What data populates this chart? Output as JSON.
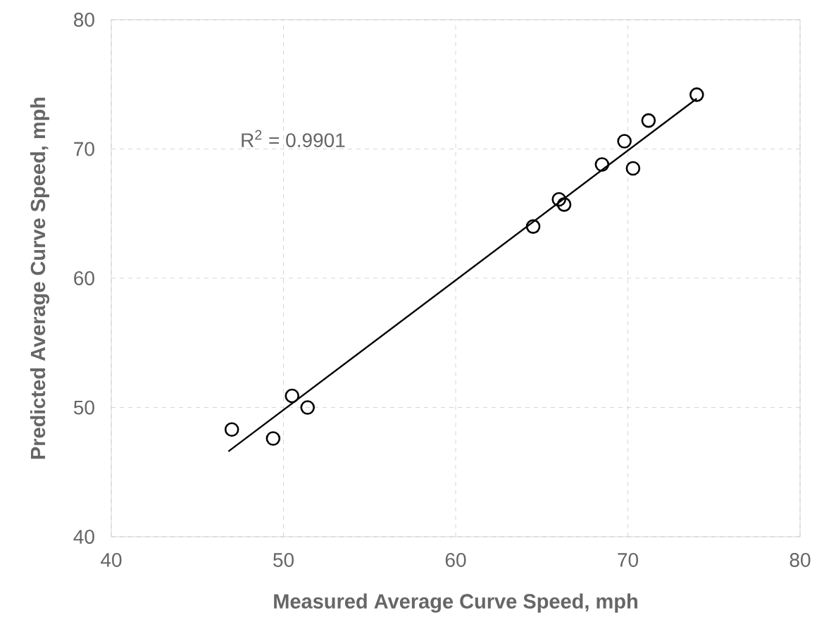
{
  "chart_data": {
    "type": "scatter",
    "xlabel": "Measured Average Curve Speed, mph",
    "ylabel": "Predicted Average Curve Speed, mph",
    "annotations": [
      "R$^{2}$ = 0.9901"
    ],
    "xlim": [
      40,
      80
    ],
    "ylim": [
      40,
      80
    ],
    "xticks": [
      40,
      50,
      60,
      70,
      80
    ],
    "yticks": [
      40,
      50,
      60,
      70,
      80
    ],
    "grid": true,
    "marker": "circle",
    "series": [
      {
        "color": "#000000",
        "x": [
          47.0,
          49.4,
          50.5,
          51.4,
          64.5,
          66.0,
          66.3,
          68.5,
          69.8,
          70.3,
          71.2,
          74.0
        ],
        "values": [
          48.3,
          47.6,
          50.9,
          50.0,
          64.0,
          66.1,
          65.7,
          68.8,
          70.6,
          68.5,
          72.2,
          74.2
        ]
      },
      {
        "type": "line",
        "color": "#000000",
        "x": [
          46.8,
          74.0
        ],
        "values": [
          46.6,
          73.9
        ],
        "marker": "none",
        "line_style": "solid"
      }
    ]
  }
}
